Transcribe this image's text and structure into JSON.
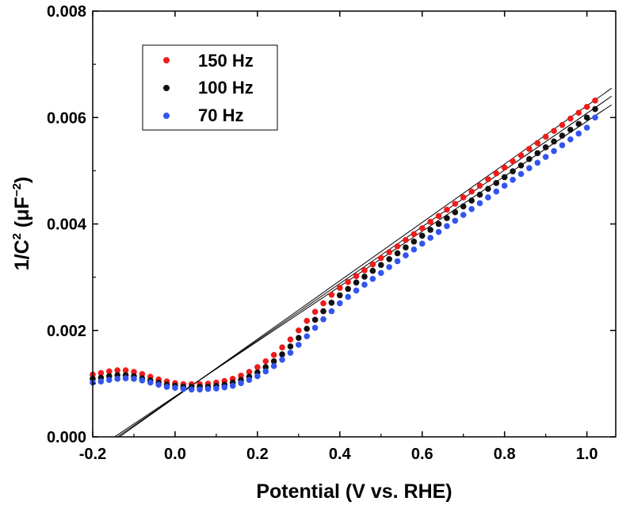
{
  "chart_data": {
    "type": "scatter",
    "title": "",
    "xlabel": "Potential (V vs. RHE)",
    "ylabel_parts": {
      "base": "1/C",
      "exp1": "2",
      "mid": " (μF",
      "exp2": "−2",
      "end": ")"
    },
    "xlim": [
      -0.2,
      1.07
    ],
    "ylim": [
      0,
      0.008
    ],
    "x_ticks": [
      -0.2,
      0.0,
      0.2,
      0.4,
      0.6,
      0.8,
      1.0
    ],
    "x_tick_labels": [
      "-0.2",
      "0.0",
      "0.2",
      "0.4",
      "0.6",
      "0.8",
      "1.0"
    ],
    "y_ticks": [
      0,
      0.002,
      0.004,
      0.006,
      0.008
    ],
    "y_tick_labels": [
      "0.000",
      "0.002",
      "0.004",
      "0.006",
      "0.008"
    ],
    "legend_position": "top-left",
    "series": [
      {
        "name": "150 Hz",
        "color": "#ee1c1c",
        "x": [
          -0.2,
          -0.18,
          -0.16,
          -0.14,
          -0.12,
          -0.1,
          -0.08,
          -0.06,
          -0.04,
          -0.02,
          0.0,
          0.02,
          0.04,
          0.06,
          0.08,
          0.1,
          0.12,
          0.14,
          0.16,
          0.18,
          0.2,
          0.22,
          0.24,
          0.26,
          0.28,
          0.3,
          0.32,
          0.34,
          0.36,
          0.38,
          0.4,
          0.42,
          0.44,
          0.46,
          0.48,
          0.5,
          0.52,
          0.54,
          0.56,
          0.58,
          0.6,
          0.62,
          0.64,
          0.66,
          0.68,
          0.7,
          0.72,
          0.74,
          0.76,
          0.78,
          0.8,
          0.82,
          0.84,
          0.86,
          0.88,
          0.9,
          0.92,
          0.94,
          0.96,
          0.98,
          1.0,
          1.02
        ],
        "y": [
          0.00117,
          0.0012,
          0.00123,
          0.00125,
          0.00125,
          0.00122,
          0.00118,
          0.00113,
          0.00108,
          0.00104,
          0.00101,
          0.00099,
          0.00099,
          0.00099,
          0.001,
          0.00102,
          0.00105,
          0.00109,
          0.00115,
          0.00122,
          0.00131,
          0.00142,
          0.00154,
          0.00168,
          0.00183,
          0.002,
          0.00218,
          0.00235,
          0.00251,
          0.00267,
          0.0028,
          0.00291,
          0.00302,
          0.00313,
          0.00324,
          0.00336,
          0.00347,
          0.00358,
          0.0037,
          0.00381,
          0.00392,
          0.00404,
          0.00415,
          0.00427,
          0.00438,
          0.0045,
          0.00461,
          0.00472,
          0.00484,
          0.00495,
          0.00506,
          0.00518,
          0.00529,
          0.00541,
          0.00552,
          0.00564,
          0.00575,
          0.00586,
          0.00598,
          0.00609,
          0.0062,
          0.00632
        ]
      },
      {
        "name": "100 Hz",
        "color": "#111111",
        "x": [
          -0.2,
          -0.18,
          -0.16,
          -0.14,
          -0.12,
          -0.1,
          -0.08,
          -0.06,
          -0.04,
          -0.02,
          0.0,
          0.02,
          0.04,
          0.06,
          0.08,
          0.1,
          0.12,
          0.14,
          0.16,
          0.18,
          0.2,
          0.22,
          0.24,
          0.26,
          0.28,
          0.3,
          0.32,
          0.34,
          0.36,
          0.38,
          0.4,
          0.42,
          0.44,
          0.46,
          0.48,
          0.5,
          0.52,
          0.54,
          0.56,
          0.58,
          0.6,
          0.62,
          0.64,
          0.66,
          0.68,
          0.7,
          0.72,
          0.74,
          0.76,
          0.78,
          0.8,
          0.82,
          0.84,
          0.86,
          0.88,
          0.9,
          0.92,
          0.94,
          0.96,
          0.98,
          1.0,
          1.02
        ],
        "y": [
          0.00109,
          0.00111,
          0.00114,
          0.00116,
          0.00116,
          0.00114,
          0.0011,
          0.00106,
          0.00102,
          0.00098,
          0.00096,
          0.00094,
          0.00094,
          0.00094,
          0.00094,
          0.00096,
          0.00098,
          0.00102,
          0.00107,
          0.00113,
          0.00121,
          0.00131,
          0.00142,
          0.00155,
          0.0017,
          0.00186,
          0.00203,
          0.0022,
          0.00236,
          0.00252,
          0.00266,
          0.00278,
          0.0029,
          0.00301,
          0.00312,
          0.00323,
          0.00334,
          0.00345,
          0.00356,
          0.00367,
          0.00378,
          0.00389,
          0.004,
          0.00411,
          0.00422,
          0.00433,
          0.00444,
          0.00455,
          0.00466,
          0.00477,
          0.00488,
          0.00499,
          0.0051,
          0.00522,
          0.00533,
          0.00544,
          0.00555,
          0.00566,
          0.00577,
          0.00588,
          0.006,
          0.00616
        ]
      },
      {
        "name": "70 Hz",
        "color": "#3355ee",
        "x": [
          -0.2,
          -0.18,
          -0.16,
          -0.14,
          -0.12,
          -0.1,
          -0.08,
          -0.06,
          -0.04,
          -0.02,
          0.0,
          0.02,
          0.04,
          0.06,
          0.08,
          0.1,
          0.12,
          0.14,
          0.16,
          0.18,
          0.2,
          0.22,
          0.24,
          0.26,
          0.28,
          0.3,
          0.32,
          0.34,
          0.36,
          0.38,
          0.4,
          0.42,
          0.44,
          0.46,
          0.48,
          0.5,
          0.52,
          0.54,
          0.56,
          0.58,
          0.6,
          0.62,
          0.64,
          0.66,
          0.68,
          0.7,
          0.72,
          0.74,
          0.76,
          0.78,
          0.8,
          0.82,
          0.84,
          0.86,
          0.88,
          0.9,
          0.92,
          0.94,
          0.96,
          0.98,
          1.0,
          1.02
        ],
        "y": [
          0.00102,
          0.00104,
          0.00107,
          0.00109,
          0.0011,
          0.00109,
          0.00106,
          0.00102,
          0.00098,
          0.00094,
          0.00092,
          0.0009,
          0.00089,
          0.00089,
          0.0009,
          0.00091,
          0.00093,
          0.00096,
          0.00101,
          0.00107,
          0.00114,
          0.00123,
          0.00133,
          0.00145,
          0.00158,
          0.00173,
          0.00189,
          0.00205,
          0.00221,
          0.00236,
          0.00251,
          0.00263,
          0.00275,
          0.00286,
          0.00297,
          0.00308,
          0.00319,
          0.0033,
          0.00341,
          0.00352,
          0.00363,
          0.00374,
          0.00385,
          0.00396,
          0.00406,
          0.00417,
          0.00428,
          0.00439,
          0.0045,
          0.00461,
          0.00472,
          0.00483,
          0.00494,
          0.00505,
          0.00515,
          0.00526,
          0.00537,
          0.00548,
          0.00559,
          0.0057,
          0.00581,
          0.006
        ]
      }
    ],
    "fit_lines": [
      {
        "x1": -0.135,
        "y1": 0,
        "x2": 1.06,
        "y2": 0.00655
      },
      {
        "x1": -0.14,
        "y1": 0,
        "x2": 1.06,
        "y2": 0.0064
      },
      {
        "x1": -0.147,
        "y1": 0,
        "x2": 1.06,
        "y2": 0.00624
      }
    ]
  }
}
